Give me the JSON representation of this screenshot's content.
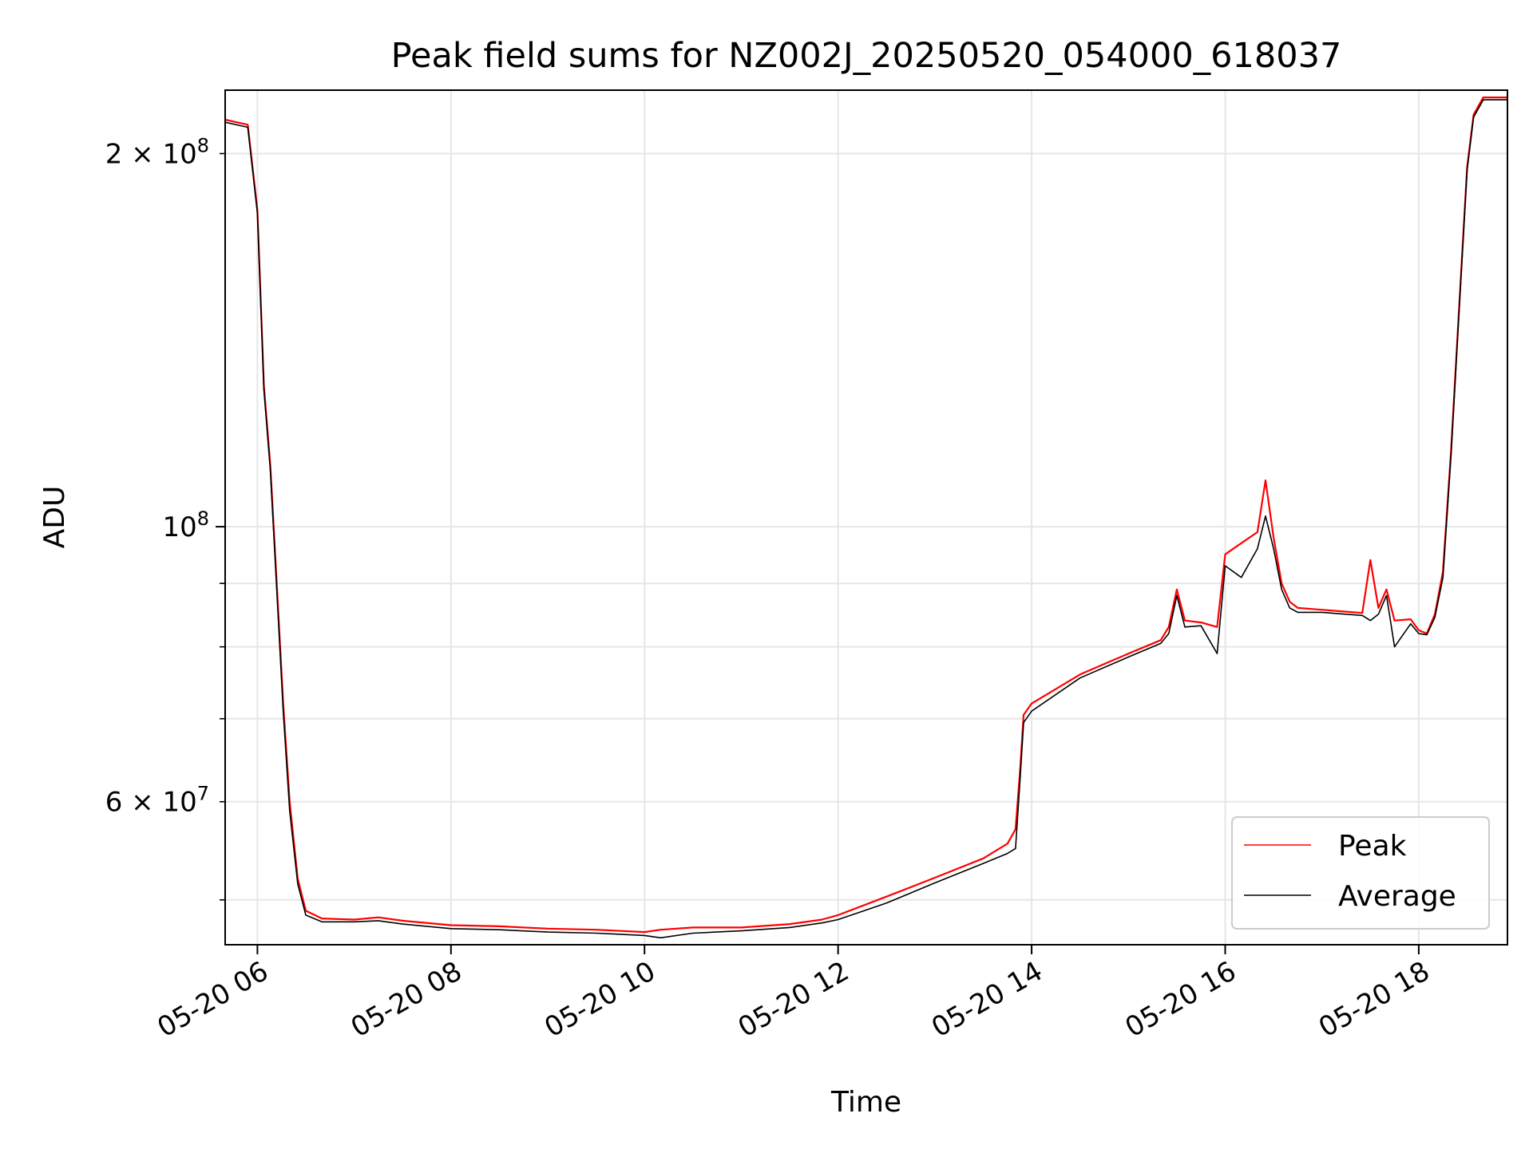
{
  "chart_data": {
    "type": "line",
    "title": "Peak field sums for NZ002J_20250520_054000_618037",
    "xlabel": "Time",
    "ylabel": "ADU",
    "x_axis": {
      "kind": "datetime",
      "range": [
        "2025-05-20 05:40",
        "2025-05-20 18:55"
      ],
      "ticks": [
        "2025-05-20 06:00",
        "2025-05-20 08:00",
        "2025-05-20 10:00",
        "2025-05-20 12:00",
        "2025-05-20 14:00",
        "2025-05-20 16:00",
        "2025-05-20 18:00"
      ],
      "tick_labels": [
        "05-20 06",
        "05-20 08",
        "05-20 10",
        "05-20 12",
        "05-20 14",
        "05-20 16",
        "05-20 18"
      ]
    },
    "y_axis": {
      "scale": "log",
      "range": [
        46000000,
        225000000
      ],
      "major_ticks": [
        100000000
      ],
      "major_tick_labels": [
        "10^8"
      ],
      "minor_ticks": [
        50000000,
        60000000,
        70000000,
        80000000,
        90000000,
        200000000
      ],
      "labelled_minor_ticks": [
        {
          "value": 60000000,
          "mantissa": "6",
          "exponent": "7"
        },
        {
          "value": 200000000,
          "mantissa": "2",
          "exponent": "8"
        }
      ]
    },
    "grid": true,
    "legend": {
      "position": "lower-right",
      "entries": [
        "Peak",
        "Average"
      ]
    },
    "series": [
      {
        "name": "Peak",
        "color": "#ff0000",
        "x": [
          "2025-05-20 05:40",
          "2025-05-20 05:54",
          "2025-05-20 06:00",
          "2025-05-20 06:04",
          "2025-05-20 06:08",
          "2025-05-20 06:12",
          "2025-05-20 06:16",
          "2025-05-20 06:20",
          "2025-05-20 06:25",
          "2025-05-20 06:30",
          "2025-05-20 06:40",
          "2025-05-20 07:00",
          "2025-05-20 07:15",
          "2025-05-20 07:30",
          "2025-05-20 08:00",
          "2025-05-20 08:30",
          "2025-05-20 09:00",
          "2025-05-20 09:30",
          "2025-05-20 10:00",
          "2025-05-20 10:10",
          "2025-05-20 10:30",
          "2025-05-20 11:00",
          "2025-05-20 11:30",
          "2025-05-20 11:50",
          "2025-05-20 12:00",
          "2025-05-20 12:30",
          "2025-05-20 13:00",
          "2025-05-20 13:30",
          "2025-05-20 13:45",
          "2025-05-20 13:50",
          "2025-05-20 13:53",
          "2025-05-20 13:55",
          "2025-05-20 14:00",
          "2025-05-20 14:30",
          "2025-05-20 15:00",
          "2025-05-20 15:20",
          "2025-05-20 15:25",
          "2025-05-20 15:30",
          "2025-05-20 15:35",
          "2025-05-20 15:45",
          "2025-05-20 15:55",
          "2025-05-20 16:00",
          "2025-05-20 16:10",
          "2025-05-20 16:20",
          "2025-05-20 16:25",
          "2025-05-20 16:30",
          "2025-05-20 16:35",
          "2025-05-20 16:40",
          "2025-05-20 16:45",
          "2025-05-20 17:00",
          "2025-05-20 17:15",
          "2025-05-20 17:25",
          "2025-05-20 17:30",
          "2025-05-20 17:35",
          "2025-05-20 17:40",
          "2025-05-20 17:45",
          "2025-05-20 17:55",
          "2025-05-20 18:00",
          "2025-05-20 18:05",
          "2025-05-20 18:10",
          "2025-05-20 18:15",
          "2025-05-20 18:20",
          "2025-05-20 18:25",
          "2025-05-20 18:30",
          "2025-05-20 18:34",
          "2025-05-20 18:40",
          "2025-05-20 18:55"
        ],
        "values": [
          213000000,
          211000000,
          180000000,
          130000000,
          112000000,
          90000000,
          72000000,
          60000000,
          52000000,
          49000000,
          48300000,
          48200000,
          48400000,
          48100000,
          47700000,
          47600000,
          47400000,
          47300000,
          47100000,
          47300000,
          47500000,
          47500000,
          47800000,
          48200000,
          48600000,
          50300000,
          52100000,
          54000000,
          55500000,
          57000000,
          64000000,
          70500000,
          72000000,
          76000000,
          79000000,
          81000000,
          83000000,
          89000000,
          84000000,
          83700000,
          83000000,
          95000000,
          97000000,
          99000000,
          109000000,
          98000000,
          90000000,
          87000000,
          86000000,
          85700000,
          85400000,
          85200000,
          94000000,
          86000000,
          89000000,
          84000000,
          84200000,
          82500000,
          82000000,
          85000000,
          92000000,
          115000000,
          150000000,
          195000000,
          215000000,
          222000000,
          222000000
        ]
      },
      {
        "name": "Average",
        "color": "#000000",
        "x": [
          "2025-05-20 05:40",
          "2025-05-20 05:54",
          "2025-05-20 06:00",
          "2025-05-20 06:04",
          "2025-05-20 06:08",
          "2025-05-20 06:12",
          "2025-05-20 06:16",
          "2025-05-20 06:20",
          "2025-05-20 06:25",
          "2025-05-20 06:30",
          "2025-05-20 06:40",
          "2025-05-20 07:00",
          "2025-05-20 07:15",
          "2025-05-20 07:30",
          "2025-05-20 08:00",
          "2025-05-20 08:30",
          "2025-05-20 09:00",
          "2025-05-20 09:30",
          "2025-05-20 10:00",
          "2025-05-20 10:10",
          "2025-05-20 10:30",
          "2025-05-20 11:00",
          "2025-05-20 11:30",
          "2025-05-20 11:50",
          "2025-05-20 12:00",
          "2025-05-20 12:30",
          "2025-05-20 13:00",
          "2025-05-20 13:30",
          "2025-05-20 13:45",
          "2025-05-20 13:50",
          "2025-05-20 13:53",
          "2025-05-20 13:55",
          "2025-05-20 14:00",
          "2025-05-20 14:30",
          "2025-05-20 15:00",
          "2025-05-20 15:20",
          "2025-05-20 15:25",
          "2025-05-20 15:30",
          "2025-05-20 15:35",
          "2025-05-20 15:45",
          "2025-05-20 15:55",
          "2025-05-20 16:00",
          "2025-05-20 16:10",
          "2025-05-20 16:20",
          "2025-05-20 16:25",
          "2025-05-20 16:30",
          "2025-05-20 16:35",
          "2025-05-20 16:40",
          "2025-05-20 16:45",
          "2025-05-20 17:00",
          "2025-05-20 17:15",
          "2025-05-20 17:25",
          "2025-05-20 17:30",
          "2025-05-20 17:35",
          "2025-05-20 17:40",
          "2025-05-20 17:45",
          "2025-05-20 17:55",
          "2025-05-20 18:00",
          "2025-05-20 18:05",
          "2025-05-20 18:10",
          "2025-05-20 18:15",
          "2025-05-20 18:20",
          "2025-05-20 18:25",
          "2025-05-20 18:30",
          "2025-05-20 18:34",
          "2025-05-20 18:40",
          "2025-05-20 18:55"
        ],
        "values": [
          212000000,
          210000000,
          179000000,
          129000000,
          111000000,
          89000000,
          71000000,
          59000000,
          51500000,
          48600000,
          48000000,
          48000000,
          48100000,
          47800000,
          47400000,
          47300000,
          47100000,
          47000000,
          46800000,
          46600000,
          47000000,
          47200000,
          47500000,
          47900000,
          48200000,
          49700000,
          51600000,
          53500000,
          54500000,
          55000000,
          63000000,
          69500000,
          71000000,
          75500000,
          78500000,
          80500000,
          82000000,
          88000000,
          83000000,
          83200000,
          79000000,
          93000000,
          91000000,
          96000000,
          102000000,
          96000000,
          89000000,
          86000000,
          85300000,
          85300000,
          85000000,
          84800000,
          84000000,
          85000000,
          88000000,
          80000000,
          83500000,
          82000000,
          81800000,
          84500000,
          91000000,
          114000000,
          149000000,
          194000000,
          214000000,
          221000000,
          221000000
        ]
      }
    ]
  }
}
